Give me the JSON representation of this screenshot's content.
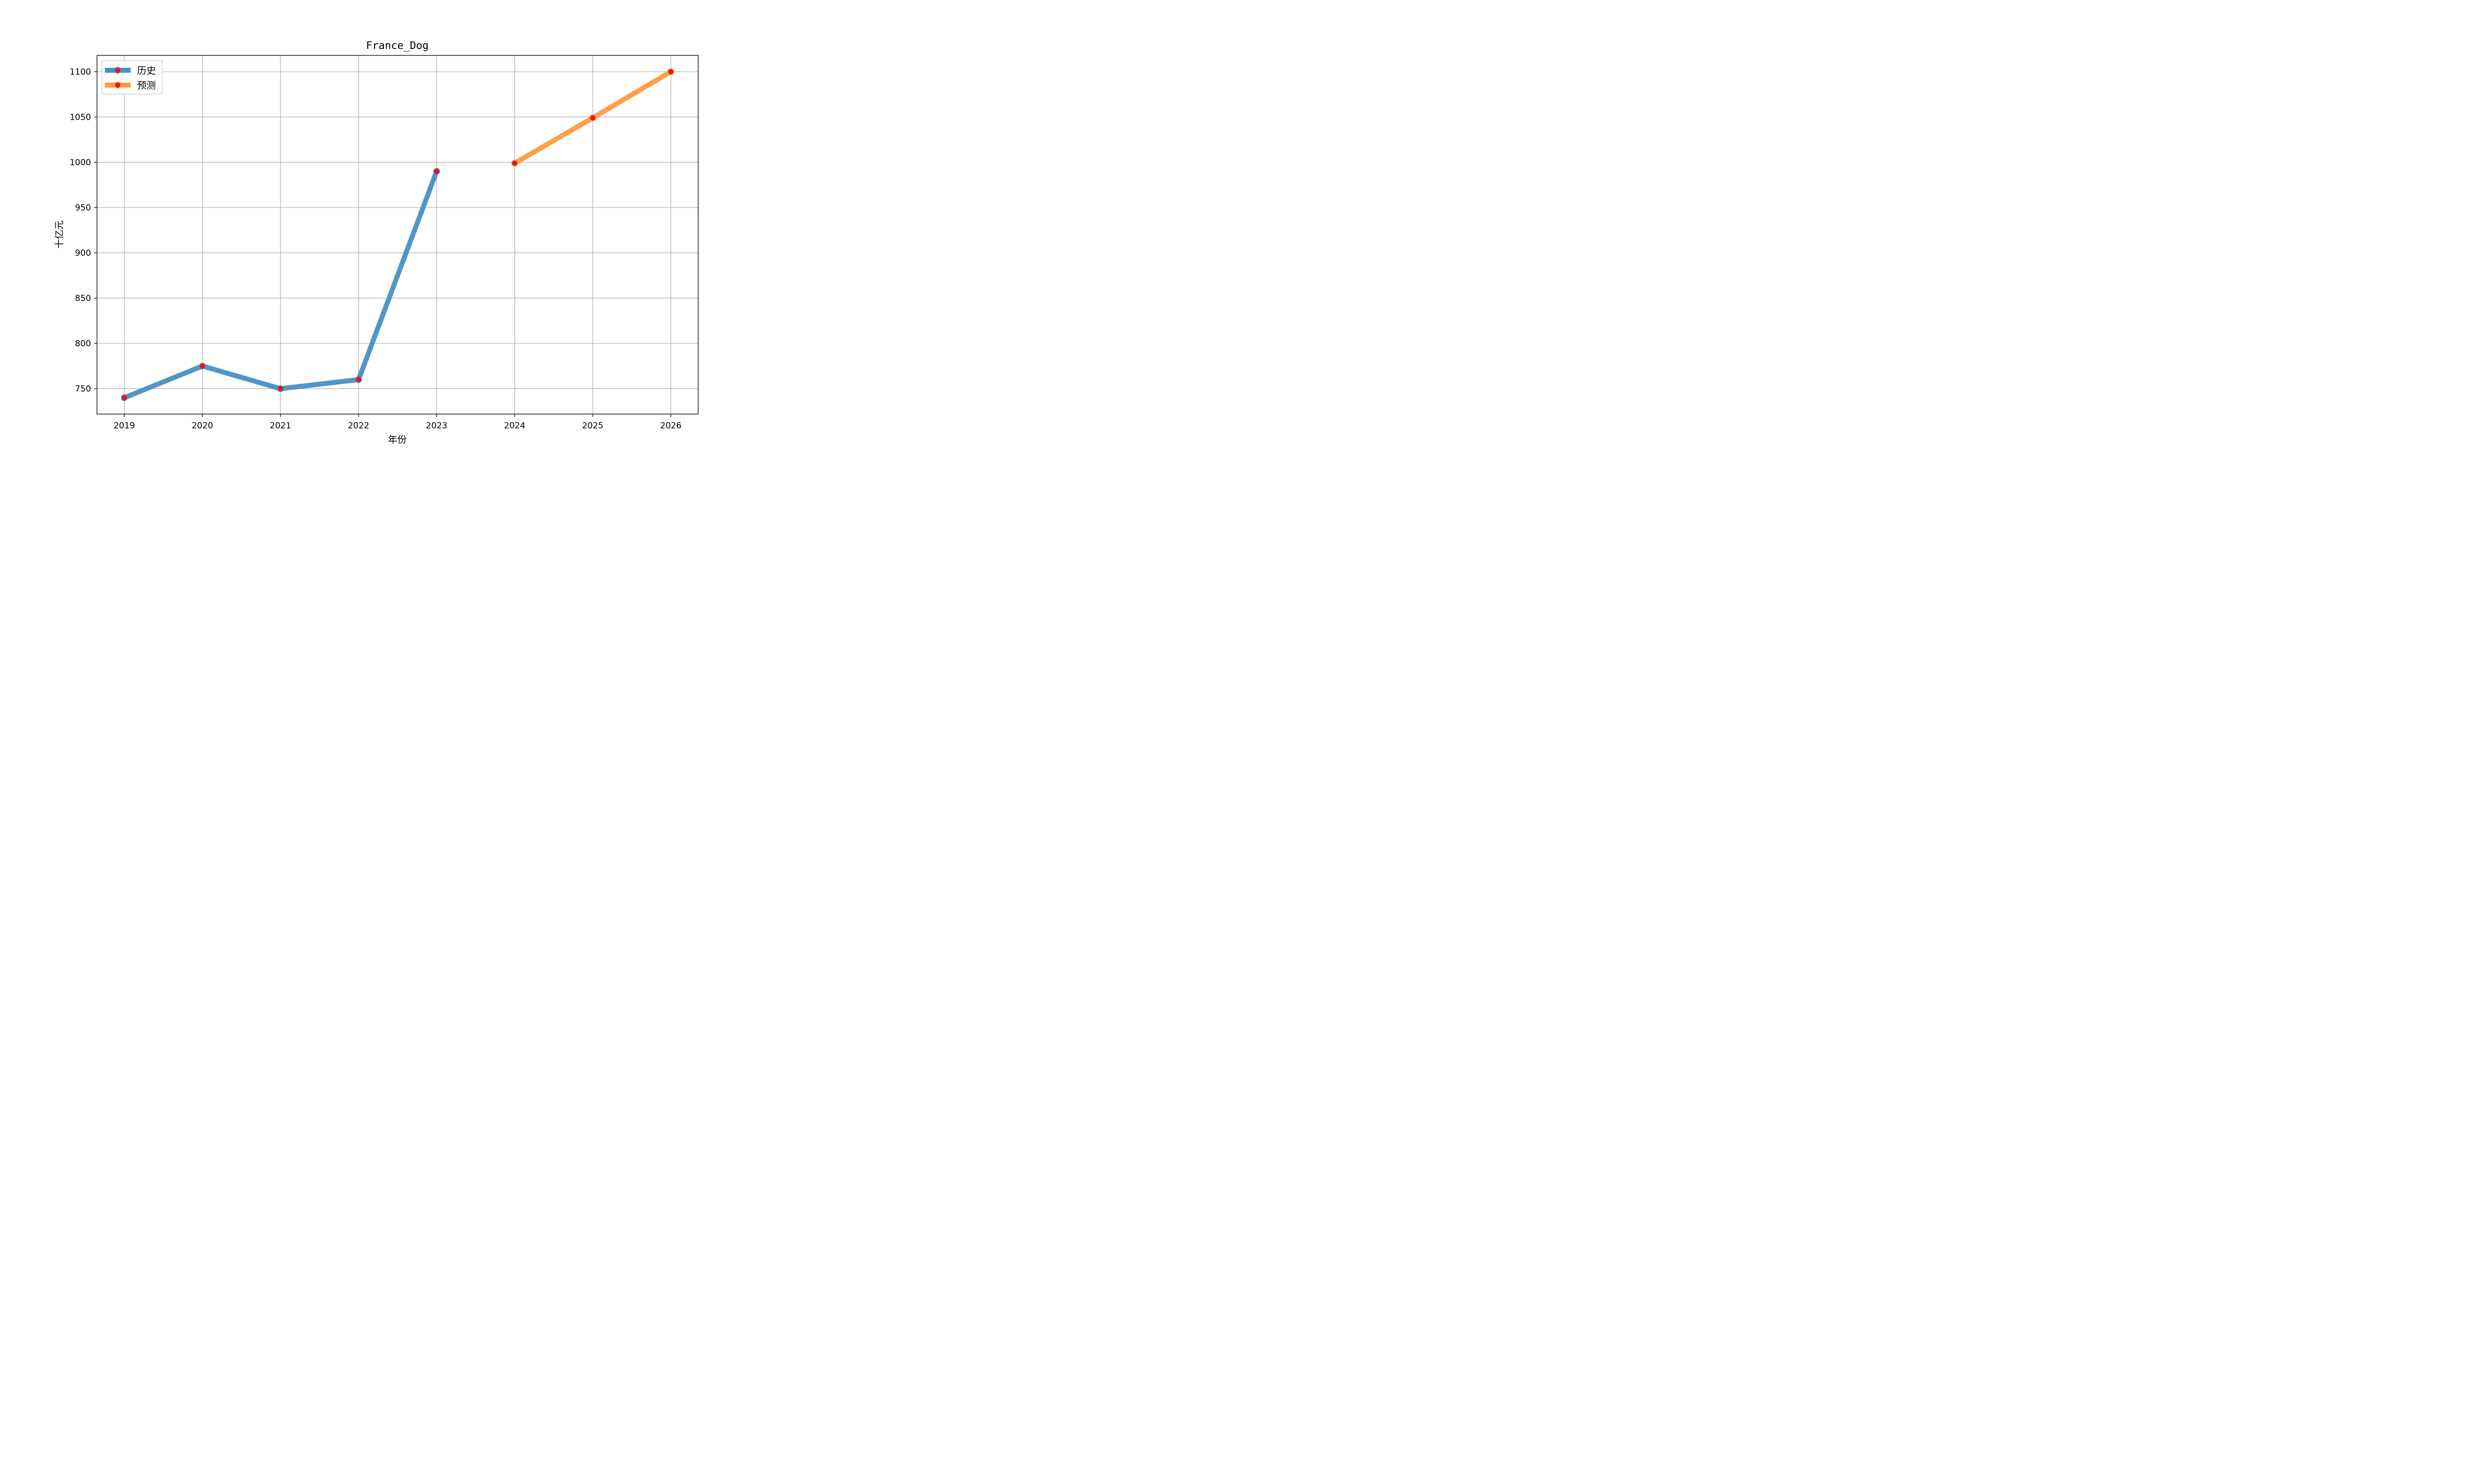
{
  "chart_data": {
    "type": "line",
    "title": "France_Dog",
    "xlabel": "年份",
    "ylabel": "十亿元",
    "x_ticks": [
      "2019",
      "2020",
      "2021",
      "2022",
      "2023",
      "2024",
      "2025",
      "2026"
    ],
    "y_ticks": [
      "750",
      "800",
      "850",
      "900",
      "950",
      "1000",
      "1050",
      "1100"
    ],
    "xlim": [
      2018.65,
      2026.35
    ],
    "ylim": [
      722,
      1118
    ],
    "grid": true,
    "legend_position": "upper-left",
    "series": [
      {
        "name": "历史",
        "color": "#4a8fc4",
        "marker_color": "#e8141c",
        "x": [
          2019,
          2020,
          2021,
          2022,
          2023
        ],
        "y": [
          740,
          775,
          750,
          760,
          990
        ]
      },
      {
        "name": "预测",
        "color": "#ff9a3e",
        "marker_color": "#e8141c",
        "x": [
          2024,
          2025,
          2026
        ],
        "y": [
          999,
          1049,
          1100
        ]
      }
    ]
  }
}
